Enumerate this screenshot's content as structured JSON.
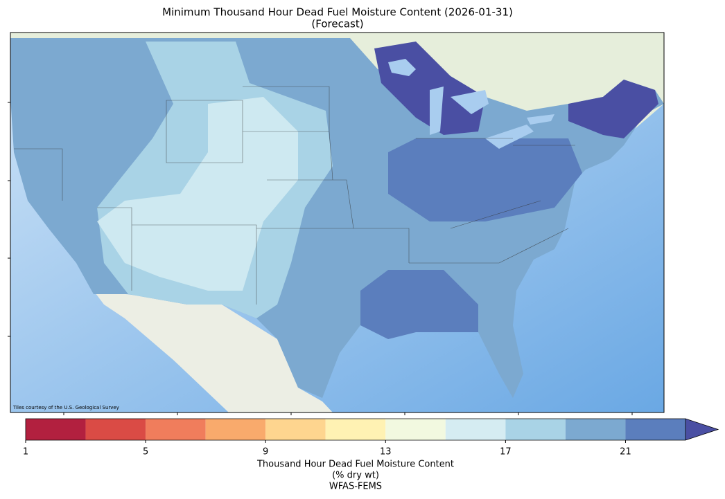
{
  "title": "Minimum Thousand Hour Dead Fuel Moisture Content (2026-01-31)",
  "subtitle": "(Forecast)",
  "map": {
    "credit": "Tiles courtesy of the U.S. Geological Survey"
  },
  "colorbar": {
    "bounds": [
      1,
      3,
      5,
      7,
      9,
      11,
      13,
      15,
      17,
      19,
      21,
      23
    ],
    "colors": [
      "#b2203f",
      "#da4b45",
      "#f07d5c",
      "#f9aa6c",
      "#fed58f",
      "#fff2b3",
      "#f2f9e0",
      "#d5ecf2",
      "#a9d3e6",
      "#7ca9d0",
      "#5b7ebd"
    ],
    "extend_color": "#4a4fa3",
    "ticks": [
      1,
      5,
      9,
      13,
      17,
      21
    ],
    "label": [
      "Thousand Hour Dead Fuel Moisture Content",
      "(% dry wt)",
      "WFAS-FEMS"
    ]
  }
}
